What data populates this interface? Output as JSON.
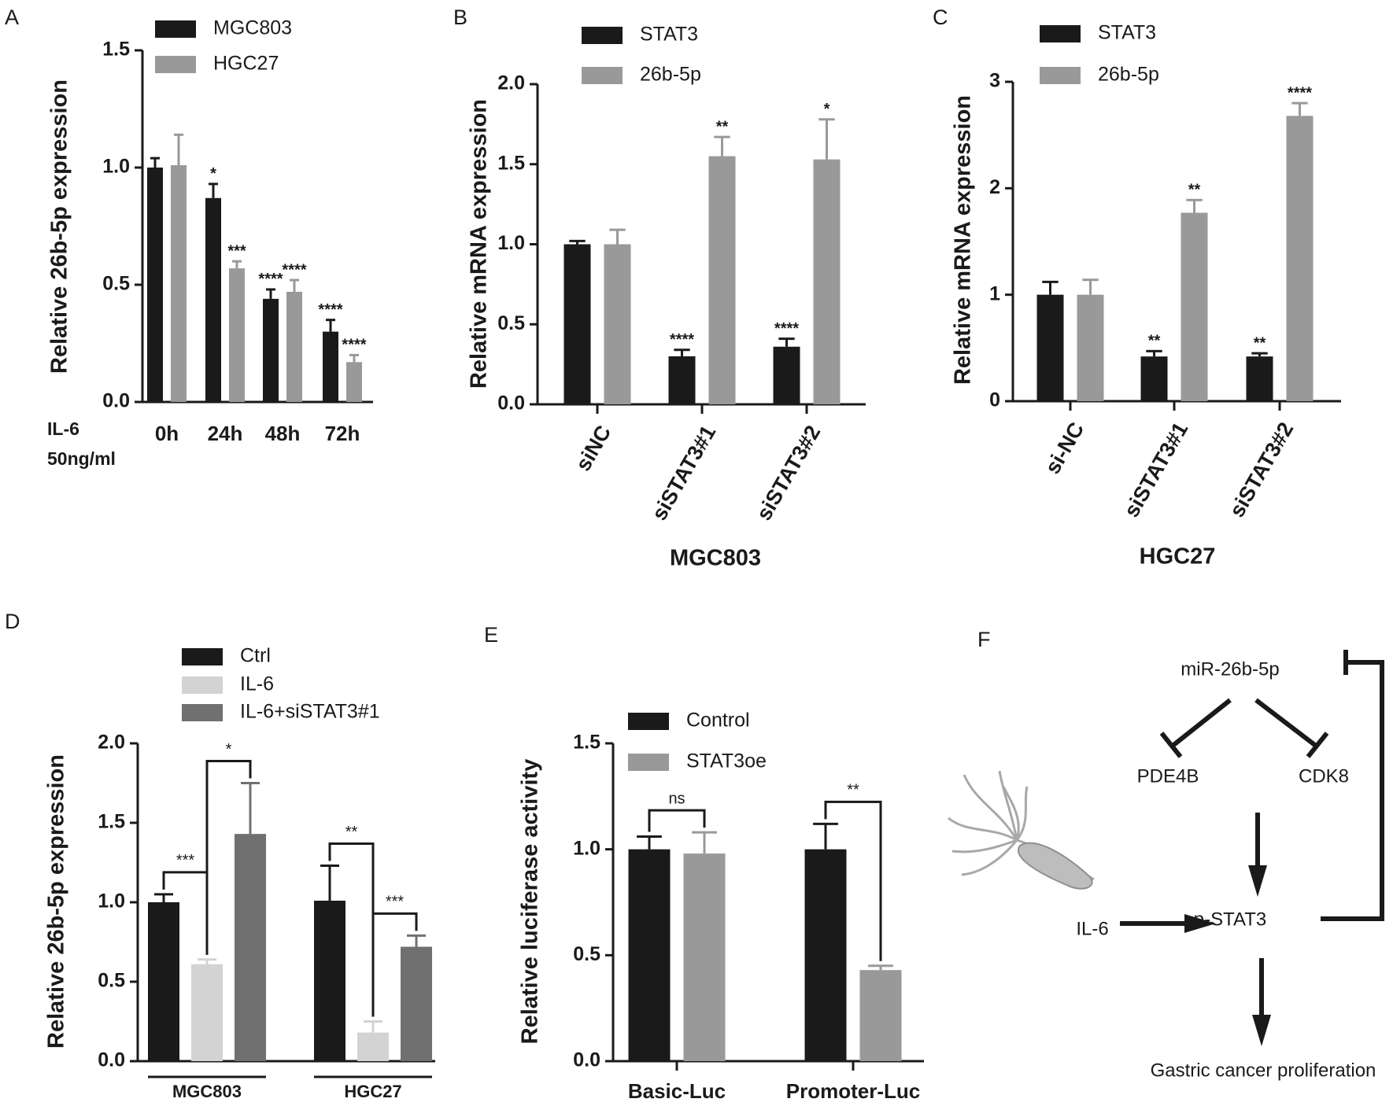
{
  "chart_data": [
    {
      "panel": "A",
      "type": "bar",
      "ylabel": "Relative 26b-5p expression",
      "x_label_lines": [
        "IL-6",
        "50ng/ml"
      ],
      "categories": [
        "0h",
        "24h",
        "48h",
        "72h"
      ],
      "series": [
        {
          "name": "MGC803",
          "color": "#1a1a1a",
          "values": [
            1.0,
            0.87,
            0.44,
            0.3
          ],
          "errors": [
            0.04,
            0.06,
            0.04,
            0.05
          ],
          "annotations": [
            null,
            "*",
            "****",
            "****"
          ]
        },
        {
          "name": "HGC27",
          "color": "#999999",
          "values": [
            1.01,
            0.57,
            0.47,
            0.17
          ],
          "errors": [
            0.13,
            0.03,
            0.05,
            0.03
          ],
          "annotations": [
            null,
            "***",
            "****",
            "****"
          ]
        }
      ],
      "ylim": [
        0,
        1.5
      ],
      "yticks": [
        {
          "value": 0,
          "label": "0.0"
        },
        0.5,
        {
          "value": 1,
          "label": "1.0"
        },
        1.5
      ]
    },
    {
      "panel": "B",
      "type": "bar",
      "ylabel": "Relative mRNA expression",
      "xlabel": "MGC803",
      "categories": [
        "siNC",
        "siSTAT3#1",
        "siSTAT3#2"
      ],
      "series": [
        {
          "name": "STAT3",
          "color": "#1a1a1a",
          "values": [
            1.0,
            0.3,
            0.36
          ],
          "errors": [
            0.02,
            0.04,
            0.05
          ],
          "annotations": [
            null,
            "****",
            "****"
          ]
        },
        {
          "name": "26b-5p",
          "color": "#999999",
          "values": [
            1.0,
            1.55,
            1.53
          ],
          "errors": [
            0.09,
            0.12,
            0.25
          ],
          "annotations": [
            null,
            "**",
            "*"
          ]
        }
      ],
      "ylim": [
        0,
        2
      ],
      "yticks": [
        {
          "value": 0,
          "label": "0.0"
        },
        0.5,
        {
          "value": 1,
          "label": "1.0"
        },
        1.5,
        {
          "value": 2,
          "label": "2.0"
        }
      ]
    },
    {
      "panel": "C",
      "type": "bar",
      "ylabel": "Relative mRNA expression",
      "xlabel": "HGC27",
      "categories": [
        "si-NC",
        "siSTAT3#1",
        "siSTAT3#2"
      ],
      "series": [
        {
          "name": "STAT3",
          "color": "#1a1a1a",
          "values": [
            1.0,
            0.42,
            0.42
          ],
          "errors": [
            0.12,
            0.05,
            0.03
          ],
          "annotations": [
            null,
            "**",
            "**"
          ]
        },
        {
          "name": "26b-5p",
          "color": "#999999",
          "values": [
            1.0,
            1.77,
            2.68
          ],
          "errors": [
            0.14,
            0.12,
            0.12
          ],
          "annotations": [
            null,
            "**",
            "****"
          ]
        }
      ],
      "ylim": [
        0,
        3
      ],
      "yticks": [
        0,
        1,
        2,
        3
      ]
    },
    {
      "panel": "D",
      "type": "bar",
      "ylabel": "Relative 26b-5p expression",
      "categories": [
        "MGC803",
        "HGC27"
      ],
      "series": [
        {
          "name": "Ctrl",
          "color": "#1a1a1a",
          "values": [
            1.0,
            1.01
          ],
          "errors": [
            0.05,
            0.22
          ]
        },
        {
          "name": "IL-6",
          "color": "#d3d3d3",
          "values": [
            0.61,
            0.18
          ],
          "errors": [
            0.03,
            0.07
          ]
        },
        {
          "name": "IL-6+siSTAT3#1",
          "color": "#707070",
          "values": [
            1.43,
            0.72
          ],
          "errors": [
            0.32,
            0.07
          ]
        }
      ],
      "comparisons": [
        [
          "***",
          "*"
        ],
        [
          "**",
          "***"
        ]
      ],
      "ylim": [
        0,
        2
      ],
      "yticks": [
        {
          "value": 0,
          "label": "0.0"
        },
        0.5,
        {
          "value": 1,
          "label": "1.0"
        },
        1.5,
        {
          "value": 2,
          "label": "2.0"
        }
      ]
    },
    {
      "panel": "E",
      "type": "bar",
      "ylabel": "Relative luciferase activity",
      "categories": [
        "Basic-Luc",
        "Promoter-Luc"
      ],
      "series": [
        {
          "name": "Control",
          "color": "#1a1a1a",
          "values": [
            1.0,
            1.0
          ],
          "errors": [
            0.06,
            0.12
          ]
        },
        {
          "name": "STAT3oe",
          "color": "#999999",
          "values": [
            0.98,
            0.43
          ],
          "errors": [
            0.1,
            0.02
          ]
        }
      ],
      "comparisons": [
        [
          "ns"
        ],
        [
          "**"
        ]
      ],
      "ylim": [
        0,
        1.5
      ],
      "yticks": [
        {
          "value": 0,
          "label": "0.0"
        },
        0.5,
        {
          "value": 1,
          "label": "1.0"
        },
        1.5
      ]
    }
  ],
  "diagram": {
    "panel": "F",
    "nodes": [
      {
        "label": "miR-26b-5p"
      },
      {
        "label": "PDE4B"
      },
      {
        "label": "CDK8"
      },
      {
        "label": "IL-6"
      },
      {
        "label": "p-STAT3"
      },
      {
        "label": "Gastric cancer proliferation"
      }
    ]
  }
}
